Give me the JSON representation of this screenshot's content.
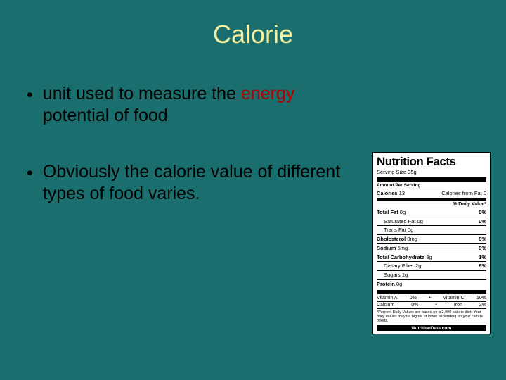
{
  "title": "Calorie",
  "bullets": {
    "b1_pre": "unit used to measure the ",
    "b1_red": "energy",
    "b1_post": " potential of food",
    "b2": "Obviously the calorie value of different types of food varies."
  },
  "label": {
    "heading": "Nutrition Facts",
    "serving_label": "Serving Size",
    "serving_val": "35g",
    "amount_per_serving": "Amount Per Serving",
    "calories_label": "Calories",
    "calories_val": "13",
    "cal_from_fat": "Calories from Fat 0",
    "dv_header": "% Daily Value*",
    "total_fat_l": "Total Fat",
    "total_fat_v": "0g",
    "total_fat_dv": "0%",
    "sat_fat_l": "Saturated Fat",
    "sat_fat_v": "0g",
    "sat_fat_dv": "0%",
    "trans_fat_l": "Trans Fat",
    "trans_fat_v": "0g",
    "chol_l": "Cholesterol",
    "chol_v": "0mg",
    "chol_dv": "0%",
    "sodium_l": "Sodium",
    "sodium_v": "5mg",
    "sodium_dv": "0%",
    "carb_l": "Total Carbohydrate",
    "carb_v": "3g",
    "carb_dv": "1%",
    "fiber_l": "Dietary Fiber",
    "fiber_v": "2g",
    "fiber_dv": "6%",
    "sugars_l": "Sugars",
    "sugars_v": "1g",
    "protein_l": "Protein",
    "protein_v": "0g",
    "vitA_l": "Vitamin A",
    "vitA_v": "0%",
    "vitC_l": "Vitamin C",
    "vitC_v": "10%",
    "calcium_l": "Calcium",
    "calcium_v": "0%",
    "iron_l": "Iron",
    "iron_v": "2%",
    "footnote": "*Percent Daily Values are based on a 2,000 calorie diet. Your daily values may be higher or lower depending on your calorie needs.",
    "source": "NutritionData.com"
  },
  "colors": {
    "background": "#1a6e6e",
    "title": "#f5f0a0",
    "body_text": "#000000",
    "accent_red": "#b00000",
    "label_bg": "#ffffff"
  }
}
